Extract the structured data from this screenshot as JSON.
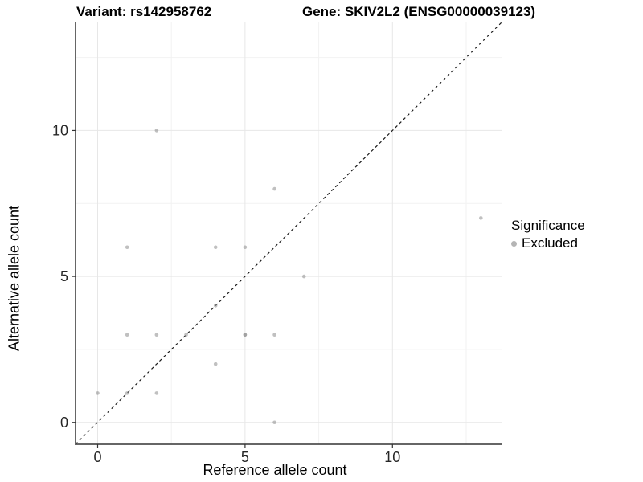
{
  "titles": {
    "variant": "Variant: rs142958762",
    "gene": "Gene: SKIV2L2 (ENSG00000039123)"
  },
  "axes": {
    "x_label": "Reference allele count",
    "y_label": "Alternative allele count"
  },
  "legend": {
    "title": "Significance",
    "items": [
      {
        "label": "Excluded",
        "color": "#b5b5b5"
      }
    ]
  },
  "chart_data": {
    "type": "scatter",
    "title": "",
    "xlabel": "Reference allele count",
    "ylabel": "Alternative allele count",
    "xlim": [
      -0.75,
      13.7
    ],
    "ylim": [
      -0.75,
      13.7
    ],
    "x_ticks": [
      0,
      5,
      10
    ],
    "y_ticks": [
      0,
      5,
      10
    ],
    "x_minor_ticks": [
      2.5,
      7.5,
      12.5
    ],
    "y_minor_ticks": [
      2.5,
      7.5,
      12.5
    ],
    "grid": true,
    "legend_position": "right",
    "colors": {
      "point": "#8c8c8c",
      "point_opacity": 0.55,
      "grid_major": "#e7e7e7",
      "grid_minor": "#f2f2f2",
      "axis_line": "#333333",
      "tick_label": "#262626",
      "reference_line": "#1a1a1a"
    },
    "series": [
      {
        "name": "Excluded",
        "points": [
          [
            0,
            1
          ],
          [
            1,
            1
          ],
          [
            2,
            1
          ],
          [
            1,
            3
          ],
          [
            2,
            3
          ],
          [
            3,
            3
          ],
          [
            5,
            3
          ],
          [
            5,
            3
          ],
          [
            6,
            3
          ],
          [
            4,
            2
          ],
          [
            4,
            4
          ],
          [
            6,
            0
          ],
          [
            1,
            6
          ],
          [
            4,
            6
          ],
          [
            5,
            6
          ],
          [
            7,
            5
          ],
          [
            6,
            8
          ],
          [
            2,
            10
          ],
          [
            13,
            7
          ]
        ]
      }
    ],
    "reference_line": {
      "type": "identity",
      "intercept": 0,
      "slope": 1,
      "style": "dashed"
    }
  }
}
